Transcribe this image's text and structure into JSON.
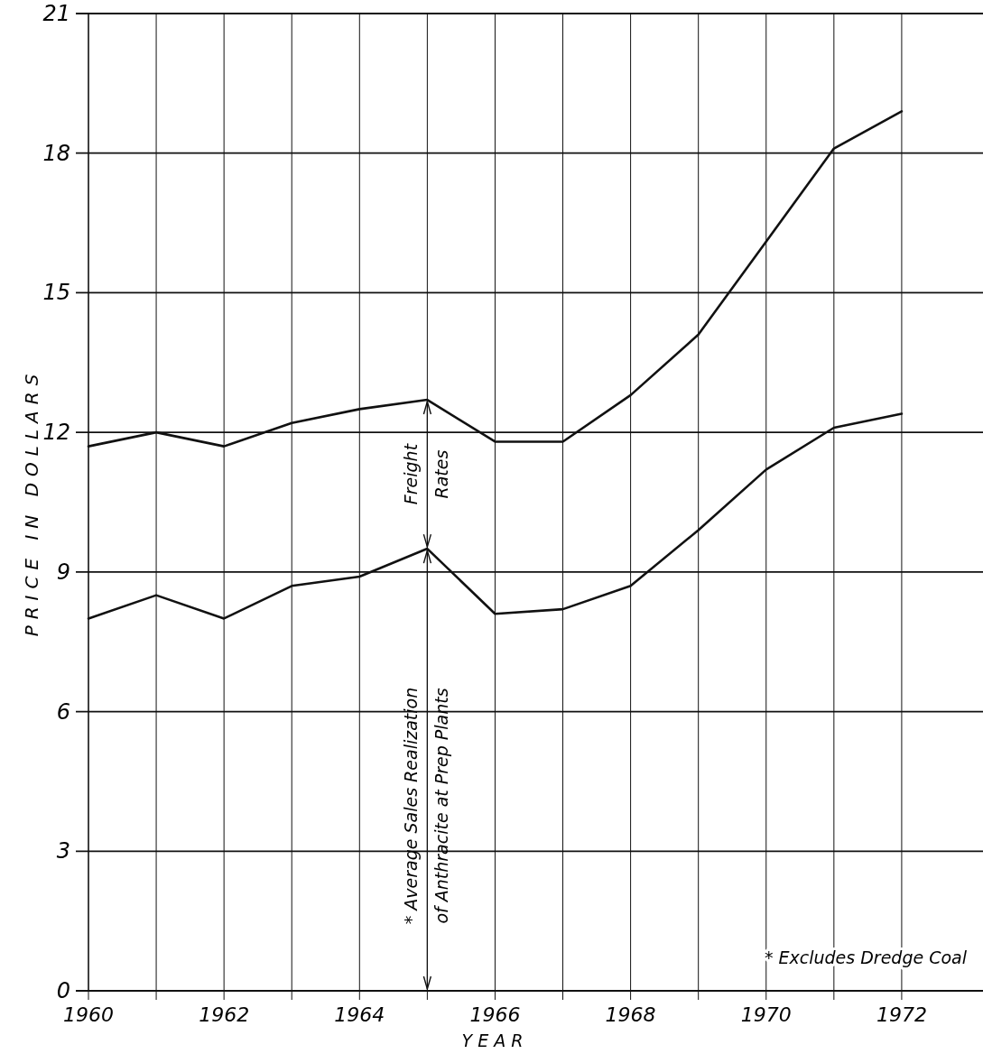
{
  "chart_data": {
    "type": "line",
    "xlabel": "YEAR",
    "ylabel": "PRICE IN DOLLARS",
    "x": [
      1960,
      1961,
      1962,
      1963,
      1964,
      1965,
      1966,
      1967,
      1968,
      1969,
      1970,
      1971,
      1972
    ],
    "series": [
      {
        "color": "#111111",
        "values": [
          11.7,
          12.0,
          11.7,
          12.2,
          12.5,
          12.7,
          11.8,
          11.8,
          12.8,
          14.1,
          16.1,
          18.1,
          18.9
        ]
      },
      {
        "color": "#111111",
        "values": [
          8.0,
          8.5,
          8.0,
          8.7,
          8.9,
          9.5,
          8.1,
          8.2,
          8.7,
          9.9,
          11.2,
          12.1,
          12.4
        ]
      }
    ],
    "xlim": [
      1960,
      1973.2
    ],
    "ylim": [
      0,
      21
    ],
    "xticks": [
      1960,
      {
        "value": 1961,
        "label": null
      },
      1962,
      {
        "value": 1963,
        "label": null
      },
      1964,
      {
        "value": 1965,
        "label": null
      },
      1966,
      {
        "value": 1967,
        "label": null
      },
      1968,
      {
        "value": 1969,
        "label": null
      },
      1970,
      {
        "value": 1971,
        "label": null
      },
      1972
    ],
    "yticks": [
      0,
      3,
      6,
      9,
      12,
      15,
      18,
      21
    ],
    "grid": true,
    "marker": "none",
    "line_style": "solid",
    "annotations": [
      "Freight\nRates",
      "* Average Sales Realization\nof Anthracite at Prep Plants",
      "* Excludes Dredge Coal"
    ]
  }
}
